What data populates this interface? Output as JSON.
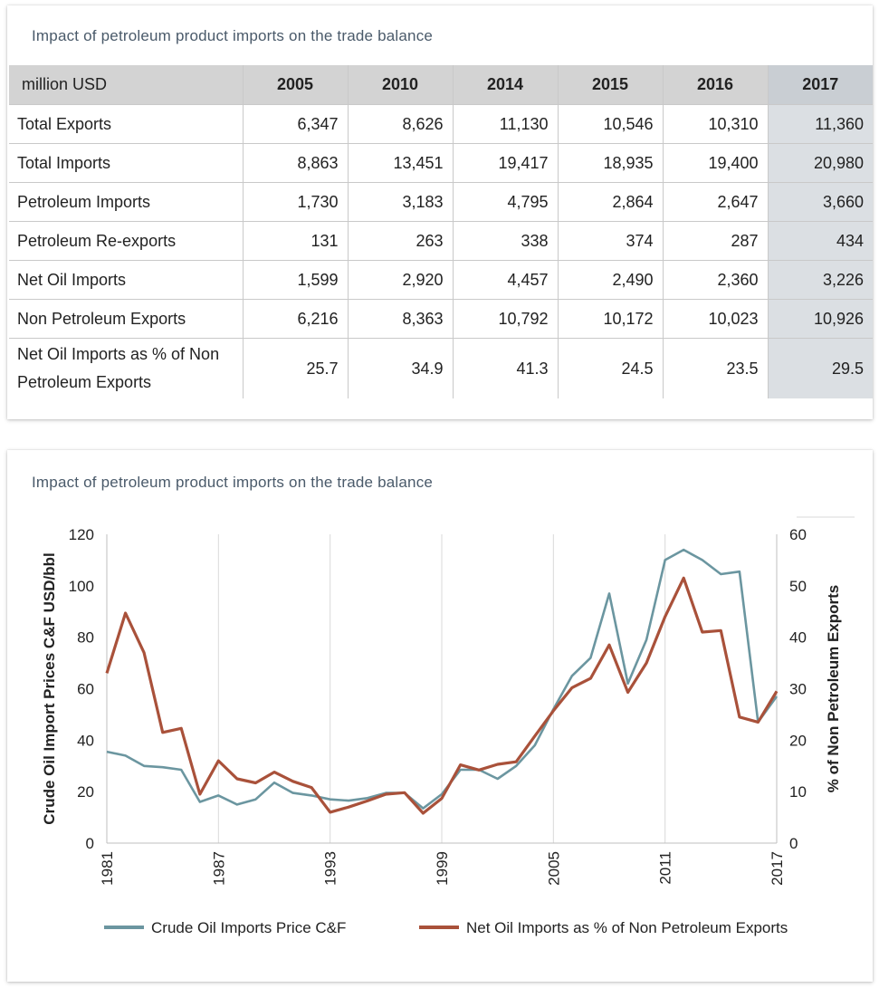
{
  "table_panel": {
    "title": "Impact of petroleum product imports on the trade balance",
    "unit_label": "million USD",
    "years": [
      "2005",
      "2010",
      "2014",
      "2015",
      "2016",
      "2017"
    ],
    "rows": [
      {
        "label": "Total Exports",
        "values": [
          "6,347",
          "8,626",
          "11,130",
          "10,546",
          "10,310",
          "11,360"
        ]
      },
      {
        "label": "Total Imports",
        "values": [
          "8,863",
          "13,451",
          "19,417",
          "18,935",
          "19,400",
          "20,980"
        ]
      },
      {
        "label": "Petroleum Imports",
        "values": [
          "1,730",
          "3,183",
          "4,795",
          "2,864",
          "2,647",
          "3,660"
        ]
      },
      {
        "label": "Petroleum Re-exports",
        "values": [
          "131",
          "263",
          "338",
          "374",
          "287",
          "434"
        ]
      },
      {
        "label": "Net Oil Imports",
        "values": [
          "1,599",
          "2,920",
          "4,457",
          "2,490",
          "2,360",
          "3,226"
        ]
      },
      {
        "label": "Non Petroleum Exports",
        "values": [
          "6,216",
          "8,363",
          "10,792",
          "10,172",
          "10,023",
          "10,926"
        ]
      },
      {
        "label_line1": "Net Oil Imports as % of Non",
        "label_line2": "Petroleum Exports",
        "values": [
          "25.7",
          "34.9",
          "41.3",
          "24.5",
          "23.5",
          "29.5"
        ]
      }
    ]
  },
  "chart_panel": {
    "title": "Impact of petroleum product imports on the trade balance"
  },
  "chart_data": {
    "type": "line",
    "title": "Impact of petroleum product imports on the trade balance",
    "ylabel": "Crude Oil Import Prices C&F USD/bbl",
    "y2label": "% of Non Petroleum Exports",
    "ylim": [
      0,
      120
    ],
    "y2lim": [
      0,
      60
    ],
    "yticks": [
      0,
      20,
      40,
      60,
      80,
      100,
      120
    ],
    "y2ticks": [
      0,
      10,
      20,
      30,
      40,
      50,
      60
    ],
    "xlim": [
      1981,
      2017
    ],
    "xticks": [
      1981,
      1987,
      1993,
      1999,
      2005,
      2011,
      2017
    ],
    "legend_position": "bottom",
    "grid": "vertical",
    "x": [
      1981,
      1982,
      1983,
      1984,
      1985,
      1986,
      1987,
      1988,
      1989,
      1990,
      1991,
      1992,
      1993,
      1994,
      1995,
      1996,
      1997,
      1998,
      1999,
      2000,
      2001,
      2002,
      2003,
      2004,
      2005,
      2006,
      2007,
      2008,
      2009,
      2010,
      2011,
      2012,
      2013,
      2014,
      2015,
      2016,
      2017
    ],
    "series": [
      {
        "name": "Crude Oil Imports Price C&F",
        "axis": "left",
        "color": "#6b96a0",
        "values": [
          35.5,
          34,
          30,
          29.5,
          28.5,
          16,
          18.5,
          15,
          17,
          23.5,
          19.5,
          18.5,
          17,
          16.5,
          17.5,
          19.5,
          19.5,
          13.5,
          19,
          28.5,
          28.5,
          25,
          30,
          38,
          52,
          65,
          72,
          97,
          62,
          79,
          110,
          114,
          110,
          104.5,
          105.5,
          47,
          57
        ]
      },
      {
        "name": "Net Oil Imports as % of Non Petroleum Exports",
        "axis": "right",
        "color": "#a9513a",
        "values": [
          33,
          44.7,
          37,
          21.5,
          22.3,
          9.5,
          16,
          12.5,
          11.7,
          13.8,
          12,
          10.8,
          6,
          7,
          8.2,
          9.5,
          9.8,
          5.8,
          8.7,
          15.2,
          14.2,
          15.3,
          15.8,
          20.8,
          25.7,
          30.2,
          32,
          38.5,
          29.3,
          35,
          44,
          51.5,
          41,
          41.3,
          24.5,
          23.5,
          29.5
        ]
      }
    ]
  }
}
